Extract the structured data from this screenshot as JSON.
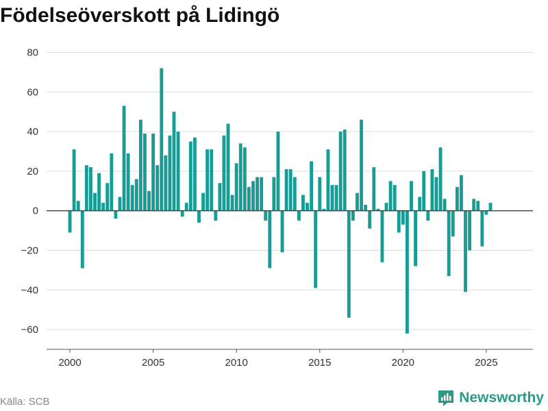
{
  "title": "Födelseöverskott på Lidingö",
  "source": "Källa: SCB",
  "brand": {
    "name": "Newsworthy",
    "icon": "newsworthy-logo-icon",
    "color": "#2a9a86"
  },
  "colors": {
    "bar": "#179d95",
    "grid": "#dddddd",
    "zero": "#444444"
  },
  "chart_data": {
    "type": "bar",
    "title": "Födelseöverskott på Lidingö",
    "xlabel": "",
    "ylabel": "",
    "ylim": [
      -70,
      85
    ],
    "xlim": [
      1998.6,
      2027.8
    ],
    "yticks": [
      80,
      60,
      40,
      20,
      0,
      -20,
      -40,
      -60
    ],
    "ytick_labels": [
      "80",
      "60",
      "40",
      "20",
      "0",
      "−20",
      "−40",
      "−60"
    ],
    "xticks": [
      2000,
      2005,
      2010,
      2015,
      2020,
      2025
    ],
    "xtick_labels": [
      "2000",
      "2005",
      "2010",
      "2015",
      "2020",
      "2025"
    ],
    "grid": true,
    "x_start": 2000.0,
    "x_step": 0.25,
    "values": [
      -11,
      31,
      5,
      -29,
      23,
      22,
      9,
      19,
      4,
      14,
      29,
      -4,
      7,
      53,
      29,
      13,
      16,
      46,
      39,
      10,
      39,
      23,
      72,
      28,
      38,
      50,
      40,
      -3,
      4,
      35,
      37,
      -6,
      9,
      31,
      31,
      -5,
      14,
      38,
      44,
      8,
      24,
      34,
      32,
      12,
      15,
      17,
      17,
      -5,
      -29,
      17,
      40,
      -21,
      21,
      21,
      17,
      -5,
      8,
      4,
      25,
      -39,
      17,
      1,
      31,
      13,
      13,
      40,
      41,
      -54,
      -5,
      9,
      46,
      3,
      -9,
      22,
      1,
      -26,
      4,
      15,
      13,
      -11,
      -7,
      -62,
      15,
      -28,
      7,
      20,
      -5,
      21,
      17,
      32,
      6,
      -33,
      -13,
      12,
      18,
      -41,
      -20,
      6,
      5,
      -18,
      -2,
      4
    ]
  }
}
